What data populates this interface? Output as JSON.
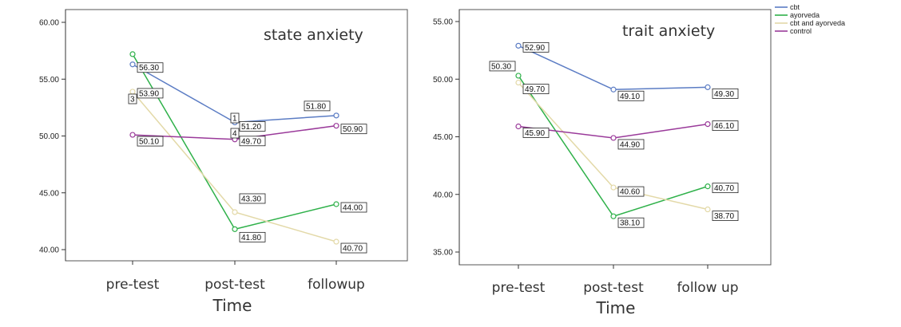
{
  "chart_data": [
    {
      "type": "line",
      "title": "state anxiety",
      "xlabel": "Time",
      "ylabel": "",
      "categories": [
        "pre-test",
        "post-test",
        "followup"
      ],
      "ylim": [
        40,
        60
      ],
      "yticks": [
        "40.00",
        "45.00",
        "50.00",
        "55.00",
        "60.00"
      ],
      "grid": false,
      "series": [
        {
          "name": "cbt",
          "color": "#5b7cc4",
          "values": [
            56.3,
            51.2,
            51.8
          ],
          "labels": [
            "56.30",
            "51.20",
            "51.80"
          ]
        },
        {
          "name": "ayorveda",
          "color": "#2fb14a",
          "values": [
            57.2,
            41.8,
            44.0
          ],
          "labels": [
            "",
            "41.80",
            "44.00"
          ]
        },
        {
          "name": "cbt and ayorveda",
          "color": "#e3d9a8",
          "values": [
            53.9,
            43.3,
            40.7
          ],
          "labels": [
            "53.90",
            "43.30",
            "40.70"
          ]
        },
        {
          "name": "control",
          "color": "#9a3a9a",
          "values": [
            50.1,
            49.7,
            50.9
          ],
          "labels": [
            "50.10",
            "49.70",
            "50.90"
          ]
        }
      ],
      "markers": [
        "3",
        "1",
        "4"
      ]
    },
    {
      "type": "line",
      "title": "trait anxiety",
      "xlabel": "Time",
      "ylabel": "",
      "categories": [
        "pre-test",
        "post-test",
        "follow up"
      ],
      "ylim": [
        35,
        55
      ],
      "yticks": [
        "35.00",
        "40.00",
        "45.00",
        "50.00",
        "55.00"
      ],
      "grid": false,
      "legend": "top-right",
      "series": [
        {
          "name": "cbt",
          "color": "#5b7cc4",
          "values": [
            52.9,
            49.1,
            49.3
          ],
          "labels": [
            "52.90",
            "49.10",
            "49.30"
          ]
        },
        {
          "name": "ayorveda",
          "color": "#2fb14a",
          "values": [
            50.3,
            38.1,
            40.7
          ],
          "labels": [
            "50.30",
            "38.10",
            "40.70"
          ]
        },
        {
          "name": "cbt and ayorveda",
          "color": "#e3d9a8",
          "values": [
            49.7,
            40.6,
            38.7
          ],
          "labels": [
            "49.70",
            "40.60",
            "38.70"
          ]
        },
        {
          "name": "control",
          "color": "#9a3a9a",
          "values": [
            45.9,
            44.9,
            46.1
          ],
          "labels": [
            "45.90",
            "44.90",
            "46.10"
          ]
        }
      ]
    }
  ]
}
